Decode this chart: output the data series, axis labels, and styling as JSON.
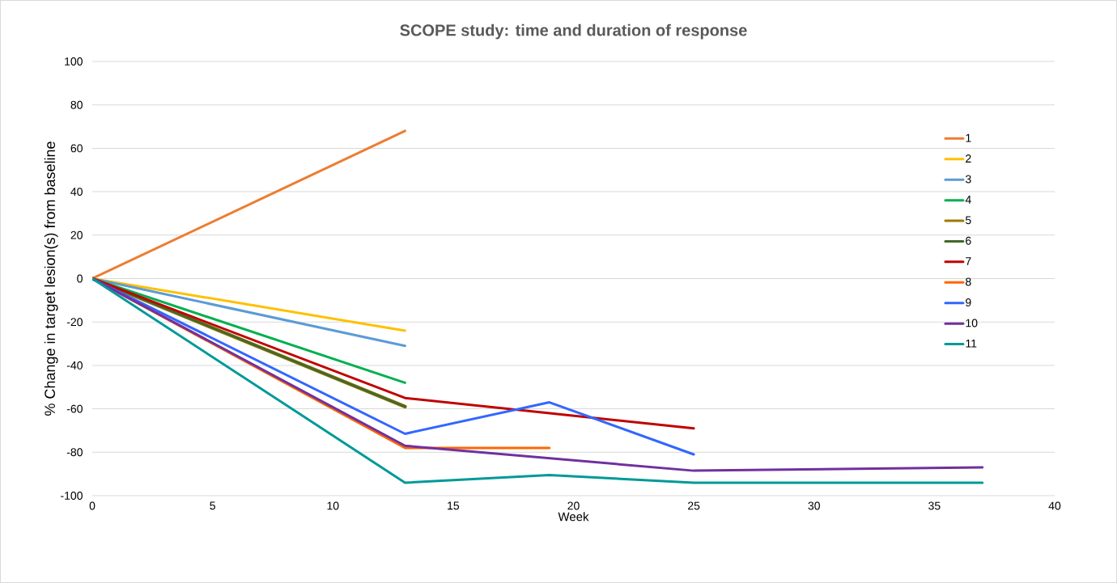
{
  "chart_data": {
    "type": "line",
    "title": "SCOPE study: time and duration of response",
    "xlabel": "Week",
    "ylabel": "% Change in target lesion(s) from baseline",
    "xlim": [
      0,
      40
    ],
    "xticks": [
      0,
      5,
      10,
      15,
      20,
      25,
      30,
      35,
      40
    ],
    "ylim": [
      -100,
      100
    ],
    "yticks": [
      -100,
      -80,
      -60,
      -40,
      -20,
      0,
      20,
      40,
      60,
      80,
      100
    ],
    "grid": "y",
    "legend": "right",
    "marker": "none",
    "line_style": "solid",
    "series": [
      {
        "name": "1",
        "color": "#ed7d31",
        "x": [
          0,
          13
        ],
        "values": [
          0,
          68
        ]
      },
      {
        "name": "2",
        "color": "#ffc000",
        "x": [
          0,
          13
        ],
        "values": [
          0,
          -24
        ]
      },
      {
        "name": "3",
        "color": "#5b9bd5",
        "x": [
          0,
          13
        ],
        "values": [
          0,
          -31
        ]
      },
      {
        "name": "4",
        "color": "#00b050",
        "x": [
          0,
          13
        ],
        "values": [
          0,
          -48
        ]
      },
      {
        "name": "5",
        "color": "#9c7a00",
        "x": [
          0,
          13
        ],
        "values": [
          0,
          -59
        ]
      },
      {
        "name": "6",
        "color": "#43682b",
        "x": [
          0,
          13
        ],
        "values": [
          0,
          -59
        ]
      },
      {
        "name": "7",
        "color": "#c00000",
        "x": [
          0,
          13,
          25
        ],
        "values": [
          0,
          -55,
          -69
        ]
      },
      {
        "name": "8",
        "color": "#ff6600",
        "x": [
          0,
          13,
          19
        ],
        "values": [
          0,
          -78,
          -78
        ]
      },
      {
        "name": "9",
        "color": "#3366ff",
        "x": [
          0,
          13,
          19,
          25
        ],
        "values": [
          0,
          -71.5,
          -57,
          -81
        ]
      },
      {
        "name": "10",
        "color": "#7030a0",
        "x": [
          0,
          13,
          25,
          37
        ],
        "values": [
          0,
          -77,
          -88.5,
          -87
        ]
      },
      {
        "name": "11",
        "color": "#009999",
        "x": [
          0,
          13,
          19,
          25,
          37
        ],
        "values": [
          0,
          -94,
          -90.5,
          -94,
          -94
        ]
      }
    ]
  }
}
